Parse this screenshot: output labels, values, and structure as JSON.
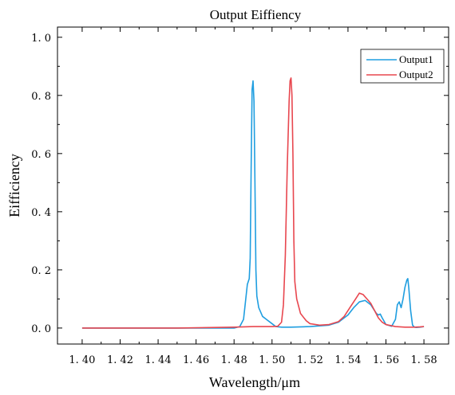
{
  "chart_data": {
    "type": "line",
    "title": "Output Eiffiency",
    "xlabel": "Wavelength/μm",
    "ylabel": "Eifficiency",
    "xlim": [
      1.387,
      1.593
    ],
    "ylim": [
      -0.055,
      1.035
    ],
    "xticks": [
      1.4,
      1.42,
      1.44,
      1.46,
      1.48,
      1.5,
      1.52,
      1.54,
      1.56,
      1.58
    ],
    "xtick_labels": [
      "1. 40",
      "1. 42",
      "1. 44",
      "1. 46",
      "1. 48",
      "1. 50",
      "1. 52",
      "1. 54",
      "1. 56",
      "1. 58"
    ],
    "yticks": [
      0.0,
      0.2,
      0.4,
      0.6,
      0.8,
      1.0
    ],
    "ytick_labels": [
      "0. 0",
      "0. 2",
      "0. 4",
      "0. 6",
      "0. 8",
      "1. 0"
    ],
    "legend_position": "top-right",
    "grid": false,
    "series": [
      {
        "name": "Output1",
        "color": "#1f9ee0",
        "x": [
          1.4,
          1.44,
          1.47,
          1.48,
          1.483,
          1.485,
          1.486,
          1.487,
          1.4875,
          1.488,
          1.4885,
          1.489,
          1.4895,
          1.49,
          1.4905,
          1.491,
          1.4915,
          1.492,
          1.493,
          1.495,
          1.497,
          1.5,
          1.502,
          1.505,
          1.51,
          1.52,
          1.53,
          1.535,
          1.54,
          1.543,
          1.546,
          1.549,
          1.552,
          1.555,
          1.556,
          1.557,
          1.558,
          1.56,
          1.563,
          1.565,
          1.566,
          1.567,
          1.568,
          1.569,
          1.57,
          1.571,
          1.5715,
          1.572,
          1.573,
          1.574,
          1.575,
          1.576,
          1.578,
          1.58
        ],
        "y": [
          0.0,
          0.0,
          0.0,
          0.0,
          0.005,
          0.03,
          0.09,
          0.15,
          0.16,
          0.17,
          0.24,
          0.55,
          0.82,
          0.85,
          0.78,
          0.5,
          0.2,
          0.11,
          0.07,
          0.04,
          0.03,
          0.015,
          0.005,
          0.003,
          0.003,
          0.005,
          0.01,
          0.02,
          0.045,
          0.07,
          0.09,
          0.095,
          0.08,
          0.05,
          0.045,
          0.048,
          0.035,
          0.012,
          0.006,
          0.03,
          0.08,
          0.09,
          0.07,
          0.1,
          0.14,
          0.165,
          0.17,
          0.14,
          0.06,
          0.01,
          0.003,
          0.002,
          0.003,
          0.005
        ]
      },
      {
        "name": "Output2",
        "color": "#e8474f",
        "x": [
          1.4,
          1.45,
          1.48,
          1.49,
          1.495,
          1.5,
          1.503,
          1.505,
          1.506,
          1.507,
          1.508,
          1.509,
          1.5095,
          1.51,
          1.5105,
          1.511,
          1.5115,
          1.512,
          1.513,
          1.515,
          1.518,
          1.52,
          1.525,
          1.53,
          1.535,
          1.538,
          1.541,
          1.544,
          1.546,
          1.548,
          1.55,
          1.552,
          1.554,
          1.556,
          1.558,
          1.56,
          1.565,
          1.57,
          1.575,
          1.578,
          1.58
        ],
        "y": [
          0.0,
          0.0,
          0.003,
          0.005,
          0.005,
          0.005,
          0.006,
          0.02,
          0.08,
          0.25,
          0.55,
          0.78,
          0.85,
          0.86,
          0.8,
          0.6,
          0.3,
          0.16,
          0.1,
          0.05,
          0.025,
          0.015,
          0.01,
          0.012,
          0.022,
          0.04,
          0.07,
          0.1,
          0.12,
          0.115,
          0.1,
          0.085,
          0.06,
          0.035,
          0.02,
          0.012,
          0.005,
          0.003,
          0.003,
          0.004,
          0.005
        ]
      }
    ]
  }
}
